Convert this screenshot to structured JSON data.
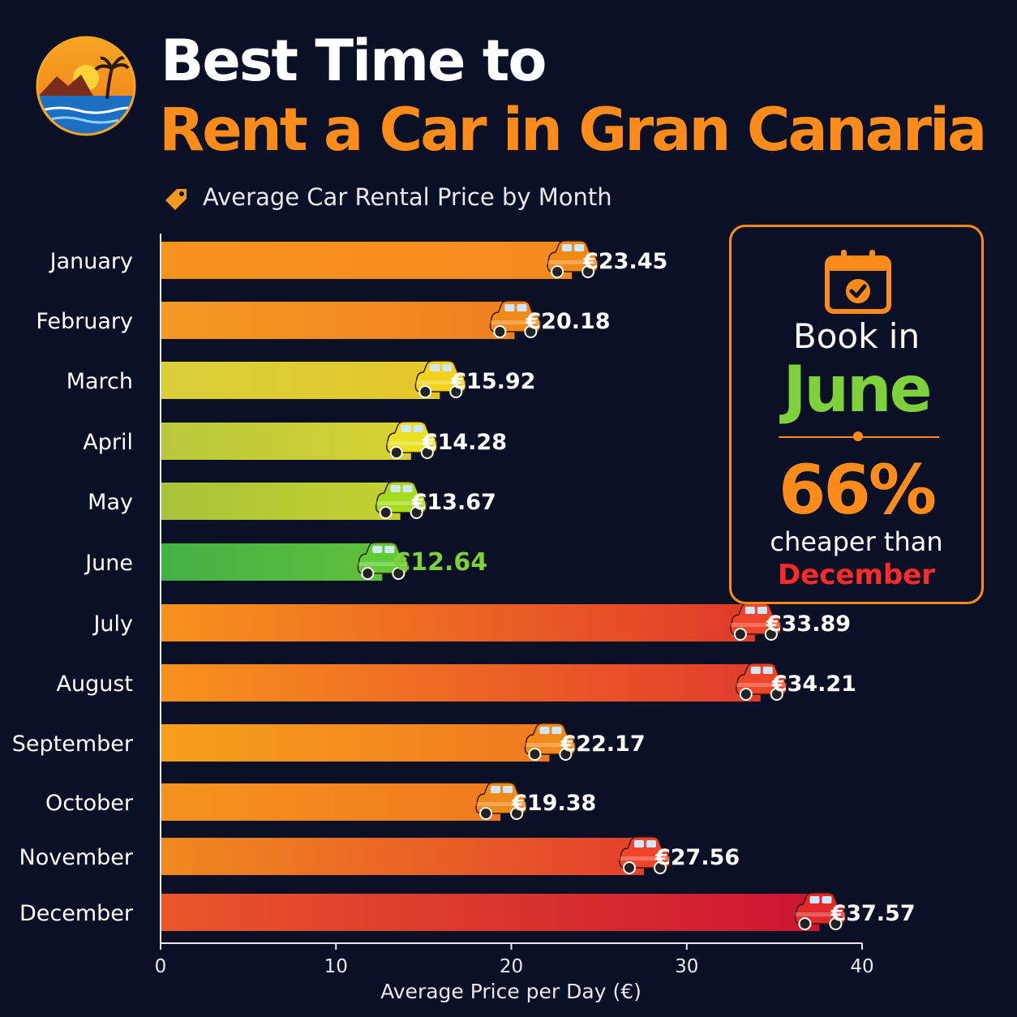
{
  "header": {
    "title_line1": "Best Time to",
    "title_line2": "Rent a Car in Gran Canaria",
    "subtitle": "Average Car Rental Price by Month"
  },
  "icons": {
    "logo": "beach-sunset-logo-icon",
    "tag": "price-tag-icon",
    "calendar": "calendar-check-icon",
    "bar_marker": "car-icon"
  },
  "callout": {
    "line1": "Book in",
    "month": "June",
    "percent": "66%",
    "line2": "cheaper than",
    "compare_month": "December"
  },
  "colors": {
    "background": "#0a1126",
    "accent": "#ff8c1a",
    "highlight_green": "#7fd13b",
    "highlight_red": "#ff2b2b"
  },
  "chart_data": {
    "type": "bar",
    "orientation": "horizontal",
    "categories": [
      "January",
      "February",
      "March",
      "April",
      "May",
      "June",
      "July",
      "August",
      "September",
      "October",
      "November",
      "December"
    ],
    "values": [
      23.45,
      20.18,
      15.92,
      14.28,
      13.67,
      12.64,
      33.89,
      34.21,
      22.17,
      19.38,
      27.56,
      37.57
    ],
    "value_labels": [
      "€23.45",
      "€20.18",
      "€15.92",
      "€14.28",
      "€13.67",
      "€12.64",
      "€33.89",
      "€34.21",
      "€22.17",
      "€19.38",
      "€27.56",
      "€37.57"
    ],
    "bar_colors": [
      [
        "#f7931e",
        "#f58a1f"
      ],
      [
        "#f59a24",
        "#f0801f"
      ],
      [
        "#d8cf3a",
        "#e3c72a"
      ],
      [
        "#b7c93c",
        "#d7d132"
      ],
      [
        "#a8c43a",
        "#c3d12e"
      ],
      [
        "#44b045",
        "#5fc13b"
      ],
      [
        "#f7921d",
        "#e03a2a"
      ],
      [
        "#f7921d",
        "#e23c2c"
      ],
      [
        "#f7a01c",
        "#ef7a1f"
      ],
      [
        "#f4931f",
        "#f07b1e"
      ],
      [
        "#f08a1e",
        "#e3402c"
      ],
      [
        "#e8572a",
        "#cc1531"
      ]
    ],
    "car_colors": [
      "#f28a1a",
      "#f28a1a",
      "#f2d21a",
      "#e8e020",
      "#a6dc1e",
      "#5fcb35",
      "#f0452a",
      "#f0452a",
      "#f28a1a",
      "#f28a1a",
      "#f0452a",
      "#e22a2a"
    ],
    "highlight_index": 5,
    "xlabel": "Average Price per Day (€)",
    "xticks": [
      0,
      10,
      20,
      30,
      40
    ],
    "xlim": [
      0,
      40
    ]
  }
}
